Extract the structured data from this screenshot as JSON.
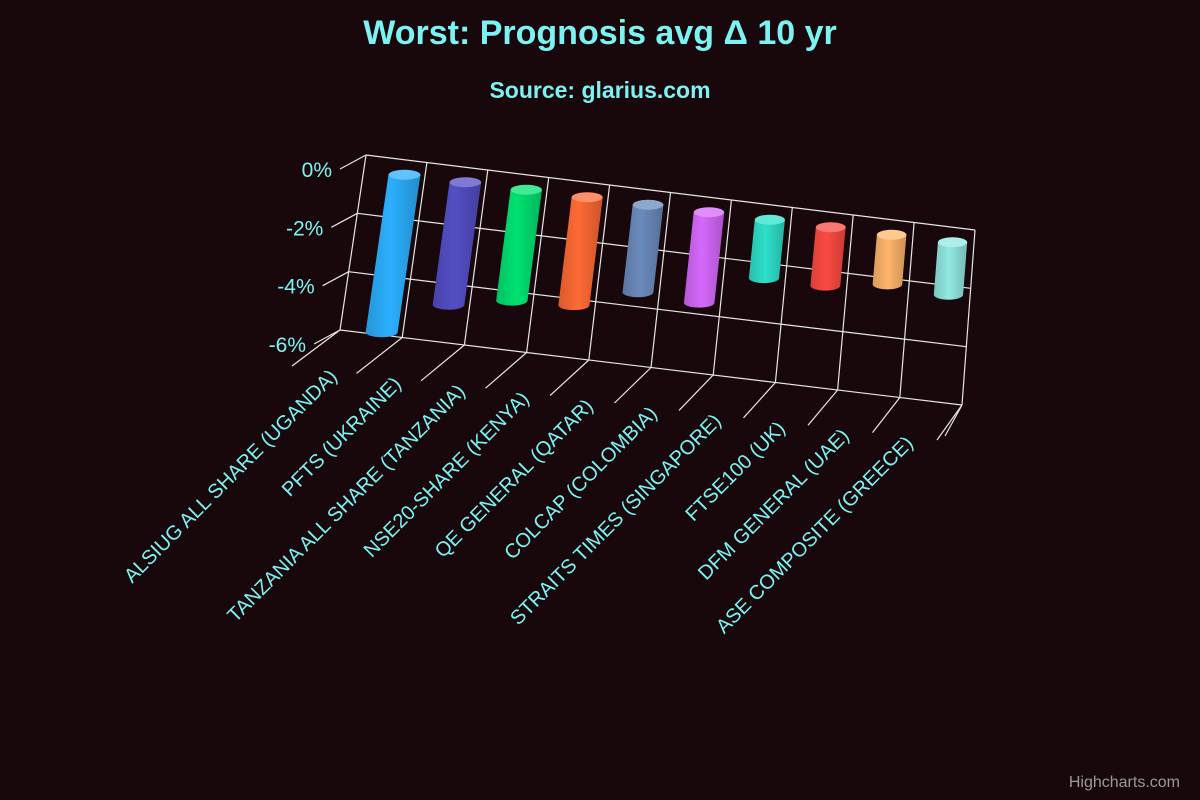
{
  "chart_data": {
    "type": "bar",
    "style": "3d-cylinder",
    "title": "Worst: Prognosis avg Δ 10 yr",
    "subtitle": "Source: glarius.com",
    "xlabel": "",
    "ylabel": "",
    "categories": [
      "ALSIUG ALL SHARE (UGANDA)",
      "PFTS (UKRAINE)",
      "TANZANIA ALL SHARE (TANZANIA)",
      "NSE20-SHARE (KENYA)",
      "QE GENERAL (QATAR)",
      "COLCAP (COLOMBIA)",
      "STRAITS TIMES (SINGAPORE)",
      "FTSE100 (UK)",
      "DFM GENERAL (UAE)",
      "ASE COMPOSITE (GREECE)"
    ],
    "values": [
      -5.4,
      -4.2,
      -3.8,
      -3.7,
      -3.0,
      -3.1,
      -2.0,
      -2.0,
      -1.7,
      -1.8
    ],
    "colors": [
      "#2caffe",
      "#544fc5",
      "#00e272",
      "#fe6a35",
      "#6b8abc",
      "#d568fb",
      "#2ee0ca",
      "#fa4b42",
      "#feb56a",
      "#91e8e1"
    ],
    "ylim": [
      -6,
      0
    ],
    "yticks": [
      0,
      -2,
      -4,
      -6
    ],
    "ytick_labels": [
      "0%",
      "-2%",
      "-4%",
      "-6%"
    ],
    "grid": true,
    "legend": "none"
  },
  "credits": "Highcharts.com"
}
